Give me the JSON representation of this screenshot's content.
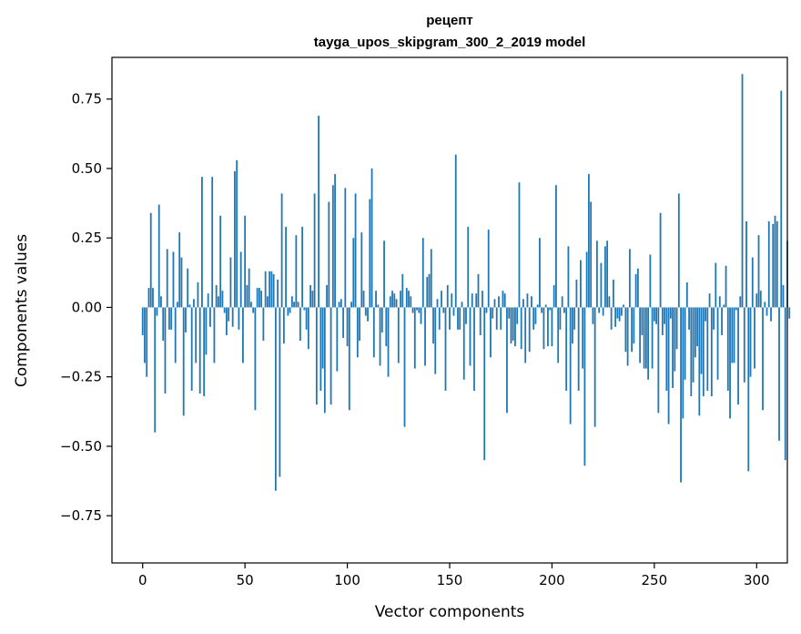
{
  "chart_data": {
    "type": "bar",
    "title": "рецепт",
    "subtitle": "tayga_upos_skipgram_300_2_2019 model",
    "xlabel": "Vector components",
    "ylabel": "Components values",
    "xlim": [
      -15,
      315
    ],
    "ylim": [
      -0.92,
      0.9
    ],
    "xticks": [
      0,
      50,
      100,
      150,
      200,
      250,
      300
    ],
    "xtick_labels": [
      "0",
      "50",
      "100",
      "150",
      "200",
      "250",
      "300"
    ],
    "yticks": [
      -0.75,
      -0.5,
      -0.25,
      0.0,
      0.25,
      0.5,
      0.75
    ],
    "ytick_labels": [
      "−0.75",
      "−0.50",
      "−0.25",
      "0.00",
      "0.25",
      "0.50",
      "0.75"
    ],
    "grid": false,
    "bar_color": "#1f77b4",
    "values": [
      -0.1,
      -0.2,
      -0.25,
      0.07,
      0.34,
      0.07,
      -0.45,
      -0.03,
      0.37,
      0.04,
      -0.12,
      -0.31,
      0.21,
      -0.08,
      -0.08,
      0.2,
      -0.2,
      0.02,
      0.27,
      0.18,
      -0.39,
      -0.09,
      0.14,
      0.01,
      -0.3,
      0.03,
      -0.2,
      0.09,
      -0.31,
      0.47,
      -0.32,
      -0.17,
      0.05,
      -0.07,
      0.47,
      -0.2,
      0.08,
      0.04,
      0.33,
      0.06,
      -0.02,
      -0.1,
      -0.05,
      0.18,
      -0.07,
      0.49,
      0.53,
      -0.08,
      0.2,
      -0.2,
      0.33,
      0.08,
      0.14,
      0.02,
      -0.02,
      -0.37,
      0.07,
      0.07,
      0.06,
      -0.12,
      0.13,
      0.04,
      0.13,
      0.13,
      0.12,
      -0.66,
      0.1,
      -0.61,
      0.41,
      -0.13,
      0.29,
      -0.03,
      -0.02,
      0.04,
      0.02,
      0.26,
      0.02,
      -0.12,
      0.29,
      -0.01,
      -0.08,
      -0.15,
      0.08,
      0.06,
      0.41,
      -0.35,
      0.69,
      -0.3,
      -0.22,
      -0.38,
      0.08,
      0.38,
      -0.35,
      0.44,
      0.48,
      -0.23,
      0.02,
      0.03,
      -0.11,
      0.43,
      -0.14,
      -0.37,
      0.02,
      0.25,
      0.41,
      -0.18,
      -0.12,
      0.27,
      0.06,
      -0.03,
      -0.05,
      0.39,
      0.5,
      -0.18,
      0.06,
      0.01,
      -0.21,
      -0.09,
      0.24,
      -0.14,
      -0.25,
      0.04,
      0.06,
      0.05,
      0.03,
      -0.2,
      0.06,
      0.12,
      -0.43,
      0.07,
      0.06,
      0.04,
      -0.02,
      -0.22,
      -0.01,
      -0.02,
      -0.06,
      0.25,
      -0.21,
      0.11,
      0.12,
      0.21,
      -0.13,
      -0.24,
      0.03,
      -0.08,
      0.06,
      -0.02,
      -0.3,
      0.08,
      -0.08,
      0.05,
      -0.03,
      0.55,
      -0.08,
      -0.08,
      0.02,
      -0.26,
      -0.06,
      0.29,
      -0.21,
      0.05,
      -0.3,
      0.05,
      0.12,
      -0.1,
      0.06,
      -0.55,
      -0.02,
      0.28,
      -0.18,
      -0.04,
      0.03,
      -0.08,
      0.04,
      -0.08,
      0.06,
      0.05,
      -0.38,
      -0.04,
      -0.13,
      -0.12,
      -0.14,
      -0.06,
      0.45,
      -0.15,
      0.03,
      -0.2,
      0.05,
      -0.16,
      0.04,
      -0.08,
      -0.06,
      0.01,
      0.25,
      -0.02,
      -0.15,
      0.01,
      -0.14,
      -0.01,
      -0.14,
      0.08,
      0.44,
      -0.2,
      -0.08,
      0.04,
      -0.02,
      -0.3,
      0.22,
      -0.42,
      -0.13,
      -0.08,
      0.1,
      -0.3,
      0.17,
      -0.22,
      -0.57,
      0.2,
      0.48,
      0.38,
      -0.06,
      -0.43,
      0.24,
      -0.02,
      0.16,
      -0.03,
      0.22,
      0.24,
      0.04,
      -0.08,
      0.1,
      -0.07,
      -0.04,
      -0.05,
      -0.03,
      0.01,
      -0.16,
      -0.21,
      0.21,
      -0.16,
      -0.13,
      0.12,
      0.14,
      -0.2,
      -0.1,
      -0.22,
      -0.22,
      -0.26,
      0.19,
      -0.22,
      -0.05,
      -0.06,
      -0.38,
      0.34,
      -0.1,
      -0.06,
      -0.3,
      -0.42,
      -0.04,
      -0.29,
      -0.23,
      -0.15,
      0.41,
      -0.63,
      -0.4,
      -0.26,
      0.09,
      -0.08,
      -0.32,
      -0.27,
      -0.18,
      -0.14,
      -0.39,
      -0.24,
      -0.32,
      -0.05,
      -0.3,
      0.05,
      -0.32,
      -0.08,
      0.16,
      -0.26,
      0.04,
      -0.1,
      0.01,
      0.15,
      -0.3,
      -0.4,
      -0.2,
      -0.2,
      -0.01,
      -0.35,
      0.04,
      0.84,
      -0.27,
      0.31,
      -0.59,
      -0.25,
      0.18,
      -0.22,
      0.05,
      0.26,
      0.06,
      -0.37,
      0.02,
      -0.03,
      0.31,
      -0.05,
      0.3,
      0.33,
      0.31,
      -0.48,
      0.78,
      0.08,
      -0.55,
      0.24,
      -0.04
    ]
  }
}
